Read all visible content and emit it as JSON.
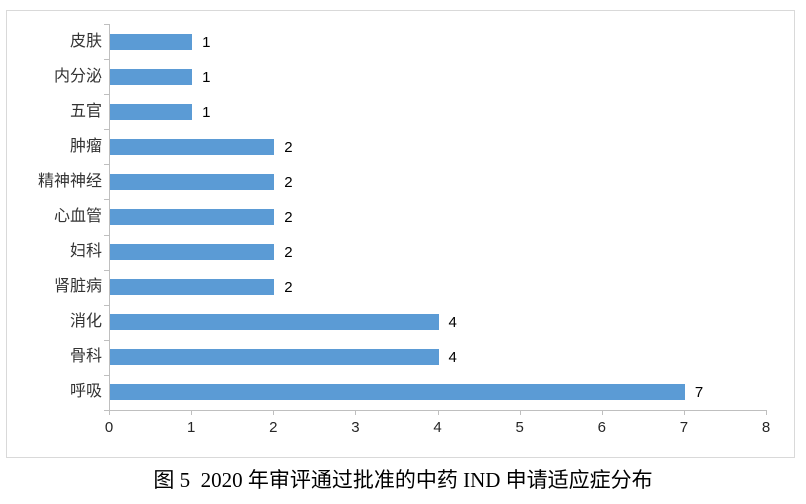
{
  "figure": {
    "caption": "图 5  2020 年审评通过批准的中药 IND 申请适应症分布"
  },
  "chart_data": {
    "type": "bar",
    "orientation": "horizontal",
    "title": "",
    "xlabel": "",
    "ylabel": "",
    "categories": [
      "皮肤",
      "内分泌",
      "五官",
      "肿瘤",
      "精神神经",
      "心血管",
      "妇科",
      "肾脏病",
      "消化",
      "骨科",
      "呼吸"
    ],
    "values": [
      1,
      1,
      1,
      2,
      2,
      2,
      2,
      2,
      4,
      4,
      7
    ],
    "data_labels": [
      "1",
      "1",
      "1",
      "2",
      "2",
      "2",
      "2",
      "2",
      "4",
      "4",
      "7"
    ],
    "xlim": [
      0,
      8
    ],
    "xticks": [
      "0",
      "1",
      "2",
      "3",
      "4",
      "5",
      "6",
      "7",
      "8"
    ],
    "grid": false,
    "legend": false,
    "bar_color": "#5B9BD5",
    "axis_color": "#BFBFBF",
    "frame_color": "#D9D9D9"
  }
}
